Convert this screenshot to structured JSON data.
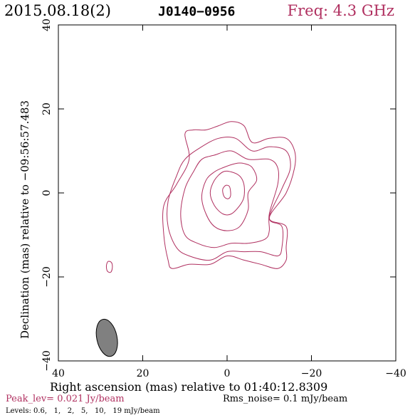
{
  "header": {
    "date": "2015.08.18(2)",
    "source": "J0140−0956",
    "frequency": "Freq: 4.3 GHz"
  },
  "colors": {
    "contour": "#b03060",
    "beam_fill": "#808080",
    "axis": "#000000"
  },
  "chart_data": {
    "type": "contour",
    "xlabel": "Right ascension (mas) relative to 01:40:12.8309",
    "ylabel": "Declination (mas) relative to −09:56:57.483",
    "xlim": [
      40,
      -40
    ],
    "ylim": [
      -40,
      40
    ],
    "x_ticks": [
      40,
      20,
      0,
      -20,
      -40
    ],
    "x_tick_labels": [
      "40",
      "20",
      "0",
      "−20",
      "−40"
    ],
    "y_ticks": [
      -40,
      -20,
      0,
      20,
      40
    ],
    "y_tick_labels": [
      "−40",
      "−20",
      "0",
      "20",
      "40"
    ],
    "levels_mJy_per_beam": [
      0.6,
      1,
      2,
      5,
      10,
      19
    ],
    "contours": [
      {
        "level": 0.6,
        "points": [
          [
            -10,
            -6
          ],
          [
            -14,
            0
          ],
          [
            -16,
            6
          ],
          [
            -16,
            10
          ],
          [
            -14,
            13
          ],
          [
            -10,
            13
          ],
          [
            -6,
            12
          ],
          [
            -4,
            16
          ],
          [
            -1,
            17
          ],
          [
            2,
            16
          ],
          [
            5,
            15
          ],
          [
            8,
            15
          ],
          [
            10,
            14
          ],
          [
            9,
            8
          ],
          [
            12,
            2
          ],
          [
            15,
            -3
          ],
          [
            15,
            -10
          ],
          [
            14,
            -16
          ],
          [
            13,
            -18
          ],
          [
            9,
            -17
          ],
          [
            4,
            -17
          ],
          [
            0,
            -15
          ],
          [
            -4,
            -16
          ],
          [
            -8,
            -17
          ],
          [
            -12,
            -18
          ],
          [
            -14,
            -16
          ],
          [
            -14,
            -13
          ],
          [
            -14,
            -8
          ]
        ]
      },
      {
        "level": 1,
        "points": [
          [
            -10,
            -6
          ],
          [
            -13,
            1
          ],
          [
            -15,
            6
          ],
          [
            -14,
            10
          ],
          [
            -10,
            11
          ],
          [
            -6,
            10
          ],
          [
            -2,
            13
          ],
          [
            2,
            13
          ],
          [
            6,
            11
          ],
          [
            10,
            8
          ],
          [
            12,
            4
          ],
          [
            14,
            -2
          ],
          [
            14,
            -8
          ],
          [
            12,
            -13
          ],
          [
            9,
            -15
          ],
          [
            4,
            -16
          ],
          [
            0,
            -14
          ],
          [
            -4,
            -14
          ],
          [
            -8,
            -14
          ],
          [
            -12,
            -15
          ],
          [
            -13,
            -13
          ],
          [
            -13,
            -8
          ]
        ]
      },
      {
        "level": 2,
        "points": [
          [
            -10,
            -5
          ],
          [
            -12,
            2
          ],
          [
            -12,
            6
          ],
          [
            -10,
            8
          ],
          [
            -5,
            8
          ],
          [
            -1,
            10
          ],
          [
            3,
            9
          ],
          [
            6,
            8
          ],
          [
            8,
            5
          ],
          [
            10,
            1
          ],
          [
            11,
            -5
          ],
          [
            10,
            -10
          ],
          [
            7,
            -12
          ],
          [
            3,
            -13
          ],
          [
            -1,
            -12
          ],
          [
            -5,
            -12
          ],
          [
            -9,
            -11
          ],
          [
            -10,
            -9
          ]
        ]
      },
      {
        "level": 5,
        "points": [
          [
            -5,
            0
          ],
          [
            -7,
            3
          ],
          [
            -6,
            6
          ],
          [
            -4,
            7
          ],
          [
            -2,
            7
          ],
          [
            1,
            6
          ],
          [
            3,
            5
          ],
          [
            5,
            3
          ],
          [
            6,
            -1
          ],
          [
            5,
            -5
          ],
          [
            3,
            -8
          ],
          [
            0,
            -9
          ],
          [
            -3,
            -8
          ],
          [
            -5,
            -4
          ]
        ]
      },
      {
        "level": 10,
        "points": [
          [
            -4,
            -1
          ],
          [
            -4,
            2
          ],
          [
            -3,
            4
          ],
          [
            -1,
            5
          ],
          [
            1,
            5
          ],
          [
            3,
            3
          ],
          [
            4,
            0
          ],
          [
            3,
            -3
          ],
          [
            1,
            -5
          ],
          [
            -1,
            -5
          ],
          [
            -3,
            -3
          ]
        ]
      },
      {
        "level": 19,
        "points": [
          [
            -0.8,
            0.6
          ],
          [
            -0.5,
            1.6
          ],
          [
            0.3,
            1.8
          ],
          [
            1,
            1
          ],
          [
            1,
            0
          ],
          [
            0.6,
            -1
          ],
          [
            -0.2,
            -1.4
          ],
          [
            -0.8,
            -0.8
          ]
        ]
      },
      {
        "level": 0.6,
        "points": [
          [
            27.2,
            -17.8
          ],
          [
            27.4,
            -16.6
          ],
          [
            28.2,
            -16.3
          ],
          [
            28.6,
            -17.3
          ],
          [
            28.4,
            -18.6
          ],
          [
            27.6,
            -18.9
          ]
        ]
      }
    ],
    "beam": {
      "center": [
        28.5,
        -34.5
      ],
      "major_mas": 9.0,
      "minor_mas": 4.8,
      "pa_deg": -12
    },
    "peak_level": "Peak_lev=  0.021 Jy/beam",
    "rms_noise": "Rms_noise=   0.1 mJy/beam",
    "levels_label": "Levels:",
    "levels_text": [
      "0.6,",
      "1,",
      "2,",
      "5,",
      "10,",
      "19 mJy/beam"
    ]
  }
}
